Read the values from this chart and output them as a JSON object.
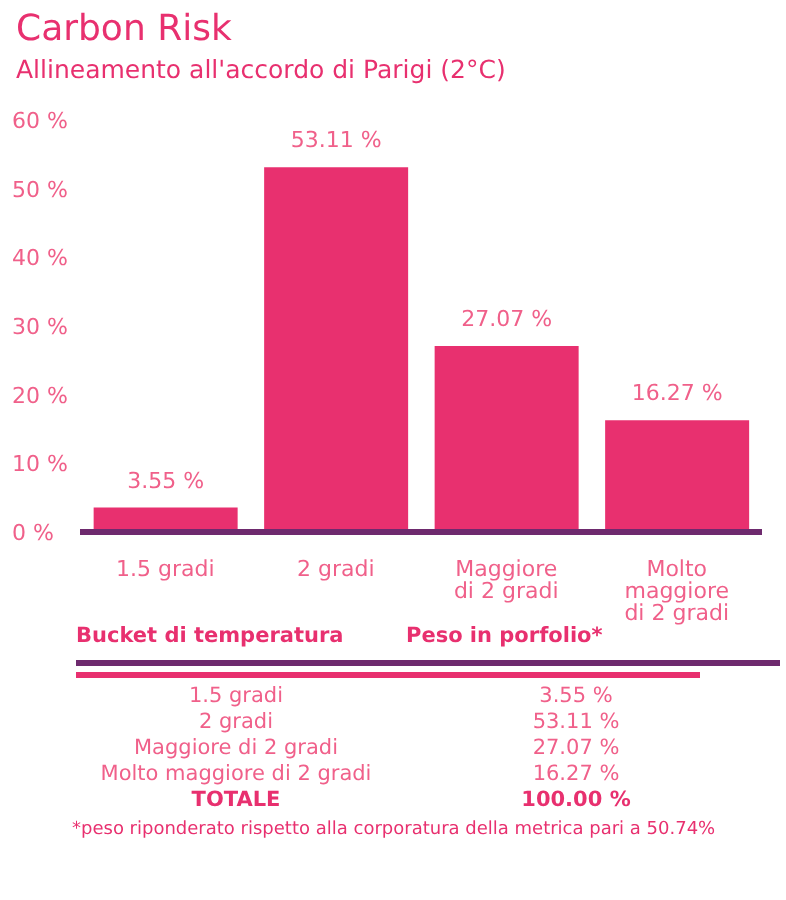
{
  "chart_data": {
    "type": "bar",
    "title": "Carbon Risk",
    "subtitle": "Allineamento all'accordo di Parigi (2°C)",
    "categories": [
      "1.5 gradi",
      "2 gradi",
      "Maggiore di 2 gradi",
      "Molto maggiore di 2 gradi"
    ],
    "values": [
      3.55,
      53.11,
      27.07,
      16.27
    ],
    "value_labels": [
      "3.55 %",
      "53.11 %",
      "27.07 %",
      "16.27 %"
    ],
    "color": "#e8306f",
    "ylim": [
      0,
      60
    ],
    "yticks": [
      {
        "value": 0,
        "label": "0 %"
      },
      {
        "value": 10,
        "label": "10 %"
      },
      {
        "value": 20,
        "label": "20 %"
      },
      {
        "value": 30,
        "label": "30 %"
      },
      {
        "value": 40,
        "label": "40 %"
      },
      {
        "value": 50,
        "label": "50 %"
      },
      {
        "value": 60,
        "label": "60 %"
      }
    ],
    "grid": false,
    "legend": false,
    "annotations": [
      "Bucket di temperatura",
      "Peso in porfolio*",
      "TOTALE",
      "100.00 %",
      "*peso riponderato rispetto alla corporatura della metrica pari a 50.74%"
    ]
  }
}
